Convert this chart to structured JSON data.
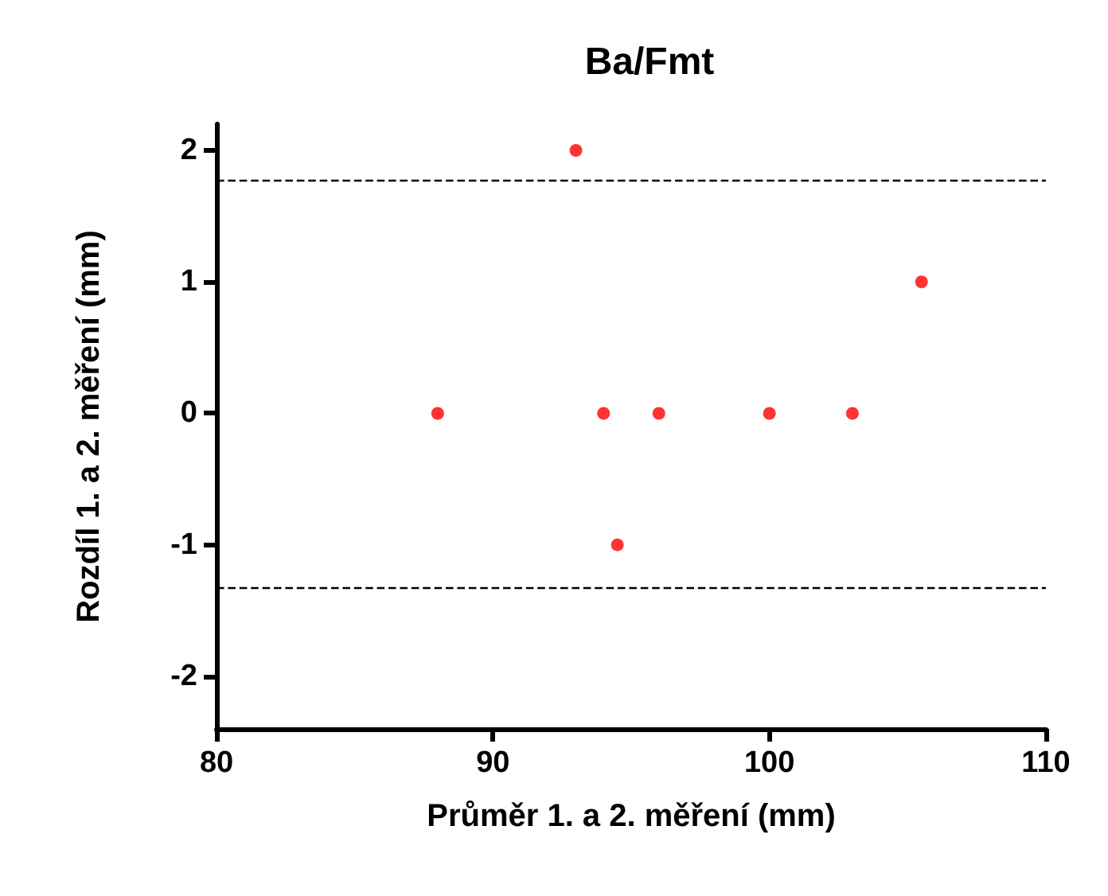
{
  "chart_data": {
    "type": "scatter",
    "title": "Ba/Fmt",
    "xlabel": "Průměr 1. a 2. měření (mm)",
    "ylabel": "Rozdíl 1. a 2. měření (mm)",
    "x": [
      88,
      93,
      94,
      94.5,
      96,
      100,
      103,
      105.5
    ],
    "series": [
      {
        "color": "#ff0000",
        "values": [
          0,
          2,
          0,
          -1,
          0,
          0,
          0,
          1
        ]
      }
    ],
    "xlim": [
      80,
      110
    ],
    "xticks": [
      80,
      90,
      100,
      110
    ],
    "ylim": [
      -2.4,
      2.2
    ],
    "yticks": [
      -2,
      -1,
      0,
      1,
      2
    ],
    "ref_lines": [
      {
        "axis": "y",
        "value": 1.77,
        "line_style": "dashed",
        "color": "#000000"
      },
      {
        "axis": "y",
        "value": -1.33,
        "line_style": "dashed",
        "color": "#000000"
      }
    ],
    "marker": "circle",
    "grid": false
  }
}
